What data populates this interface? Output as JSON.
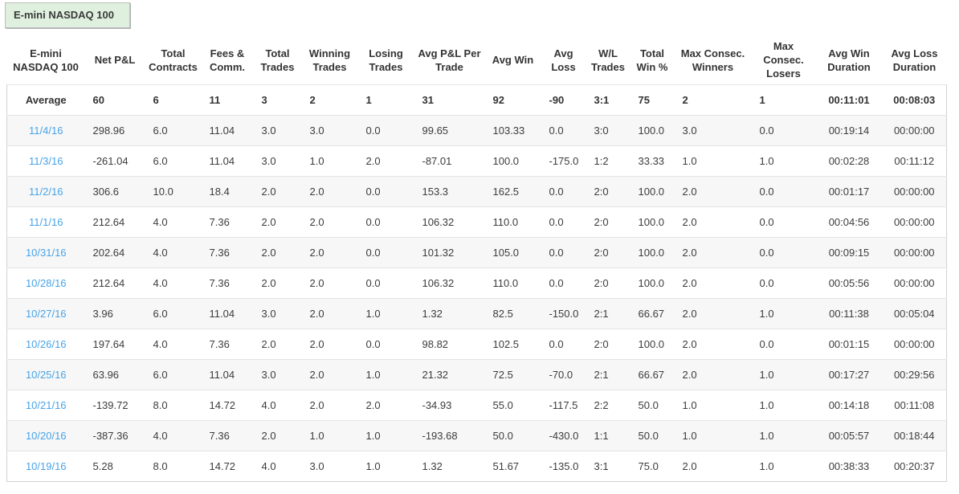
{
  "tab": {
    "label": "E-mini NASDAQ 100"
  },
  "colors": {
    "tab_bg": "#dff0df",
    "tab_border": "#bcbcbc",
    "link_blue": "#47a3e8",
    "row_stripe": "#f7f7f7",
    "row_border": "#e4e4e4",
    "table_border": "#d2d2d2",
    "text": "#3c3c3c"
  },
  "table": {
    "columns": [
      {
        "label": "E-mini NASDAQ 100"
      },
      {
        "label": "Net P&L"
      },
      {
        "label": "Total Contracts"
      },
      {
        "label": "Fees & Comm."
      },
      {
        "label": "Total Trades"
      },
      {
        "label": "Winning Trades"
      },
      {
        "label": "Losing Trades"
      },
      {
        "label": "Avg P&L Per Trade"
      },
      {
        "label": "Avg Win"
      },
      {
        "label": "Avg Loss"
      },
      {
        "label": "W/L Trades"
      },
      {
        "label": "Total Win %"
      },
      {
        "label": "Max Consec. Winners"
      },
      {
        "label": "Max Consec. Losers"
      },
      {
        "label": "Avg Win Duration"
      },
      {
        "label": "Avg Loss Duration"
      }
    ],
    "average_row": {
      "label": "Average",
      "values": [
        "60",
        "6",
        "11",
        "3",
        "2",
        "1",
        "31",
        "92",
        "-90",
        "3:1",
        "75",
        "2",
        "1",
        "00:11:01",
        "00:08:03"
      ]
    },
    "rows": [
      {
        "date": "11/4/16",
        "values": [
          "298.96",
          "6.0",
          "11.04",
          "3.0",
          "3.0",
          "0.0",
          "99.65",
          "103.33",
          "0.0",
          "3:0",
          "100.0",
          "3.0",
          "0.0",
          "00:19:14",
          "00:00:00"
        ]
      },
      {
        "date": "11/3/16",
        "values": [
          "-261.04",
          "6.0",
          "11.04",
          "3.0",
          "1.0",
          "2.0",
          "-87.01",
          "100.0",
          "-175.0",
          "1:2",
          "33.33",
          "1.0",
          "1.0",
          "00:02:28",
          "00:11:12"
        ]
      },
      {
        "date": "11/2/16",
        "values": [
          "306.6",
          "10.0",
          "18.4",
          "2.0",
          "2.0",
          "0.0",
          "153.3",
          "162.5",
          "0.0",
          "2:0",
          "100.0",
          "2.0",
          "0.0",
          "00:01:17",
          "00:00:00"
        ]
      },
      {
        "date": "11/1/16",
        "values": [
          "212.64",
          "4.0",
          "7.36",
          "2.0",
          "2.0",
          "0.0",
          "106.32",
          "110.0",
          "0.0",
          "2:0",
          "100.0",
          "2.0",
          "0.0",
          "00:04:56",
          "00:00:00"
        ]
      },
      {
        "date": "10/31/16",
        "values": [
          "202.64",
          "4.0",
          "7.36",
          "2.0",
          "2.0",
          "0.0",
          "101.32",
          "105.0",
          "0.0",
          "2:0",
          "100.0",
          "2.0",
          "0.0",
          "00:09:15",
          "00:00:00"
        ]
      },
      {
        "date": "10/28/16",
        "values": [
          "212.64",
          "4.0",
          "7.36",
          "2.0",
          "2.0",
          "0.0",
          "106.32",
          "110.0",
          "0.0",
          "2:0",
          "100.0",
          "2.0",
          "0.0",
          "00:05:56",
          "00:00:00"
        ]
      },
      {
        "date": "10/27/16",
        "values": [
          "3.96",
          "6.0",
          "11.04",
          "3.0",
          "2.0",
          "1.0",
          "1.32",
          "82.5",
          "-150.0",
          "2:1",
          "66.67",
          "2.0",
          "1.0",
          "00:11:38",
          "00:05:04"
        ]
      },
      {
        "date": "10/26/16",
        "values": [
          "197.64",
          "4.0",
          "7.36",
          "2.0",
          "2.0",
          "0.0",
          "98.82",
          "102.5",
          "0.0",
          "2:0",
          "100.0",
          "2.0",
          "0.0",
          "00:01:15",
          "00:00:00"
        ]
      },
      {
        "date": "10/25/16",
        "values": [
          "63.96",
          "6.0",
          "11.04",
          "3.0",
          "2.0",
          "1.0",
          "21.32",
          "72.5",
          "-70.0",
          "2:1",
          "66.67",
          "2.0",
          "1.0",
          "00:17:27",
          "00:29:56"
        ]
      },
      {
        "date": "10/21/16",
        "values": [
          "-139.72",
          "8.0",
          "14.72",
          "4.0",
          "2.0",
          "2.0",
          "-34.93",
          "55.0",
          "-117.5",
          "2:2",
          "50.0",
          "1.0",
          "1.0",
          "00:14:18",
          "00:11:08"
        ]
      },
      {
        "date": "10/20/16",
        "values": [
          "-387.36",
          "4.0",
          "7.36",
          "2.0",
          "1.0",
          "1.0",
          "-193.68",
          "50.0",
          "-430.0",
          "1:1",
          "50.0",
          "1.0",
          "1.0",
          "00:05:57",
          "00:18:44"
        ]
      },
      {
        "date": "10/19/16",
        "values": [
          "5.28",
          "8.0",
          "14.72",
          "4.0",
          "3.0",
          "1.0",
          "1.32",
          "51.67",
          "-135.0",
          "3:1",
          "75.0",
          "2.0",
          "1.0",
          "00:38:33",
          "00:20:37"
        ]
      }
    ]
  }
}
